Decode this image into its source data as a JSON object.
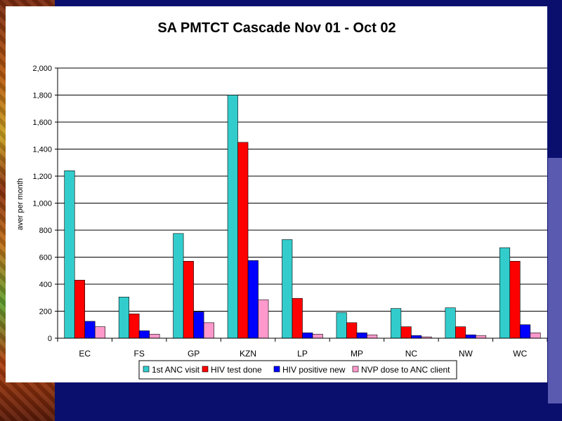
{
  "chart_data": {
    "type": "bar",
    "title": "SA PMTCT Cascade Nov 01 - Oct 02",
    "xlabel": "",
    "ylabel": "aver per month",
    "ylim": [
      0,
      2000
    ],
    "ytick_labels": [
      "0",
      "200",
      "400",
      "600",
      "800",
      "1,000",
      "1,200",
      "1,400",
      "1,600",
      "1,800",
      "2,000"
    ],
    "grid": true,
    "legend_position": "bottom",
    "categories": [
      "EC",
      "FS",
      "GP",
      "KZN",
      "LP",
      "MP",
      "NC",
      "NW",
      "WC"
    ],
    "series": [
      {
        "name": "1st ANC visit",
        "color": "#33cccc",
        "values": [
          1240,
          305,
          775,
          1800,
          730,
          190,
          220,
          225,
          670
        ]
      },
      {
        "name": "HIV test done",
        "color": "#ff0000",
        "values": [
          430,
          180,
          570,
          1450,
          295,
          115,
          85,
          85,
          570
        ]
      },
      {
        "name": "HIV positive new",
        "color": "#0000ff",
        "values": [
          125,
          55,
          195,
          575,
          40,
          40,
          20,
          25,
          100
        ]
      },
      {
        "name": "NVP dose to ANC client",
        "color": "#ff99cc",
        "values": [
          85,
          30,
          115,
          285,
          30,
          25,
          10,
          20,
          40
        ]
      }
    ]
  }
}
